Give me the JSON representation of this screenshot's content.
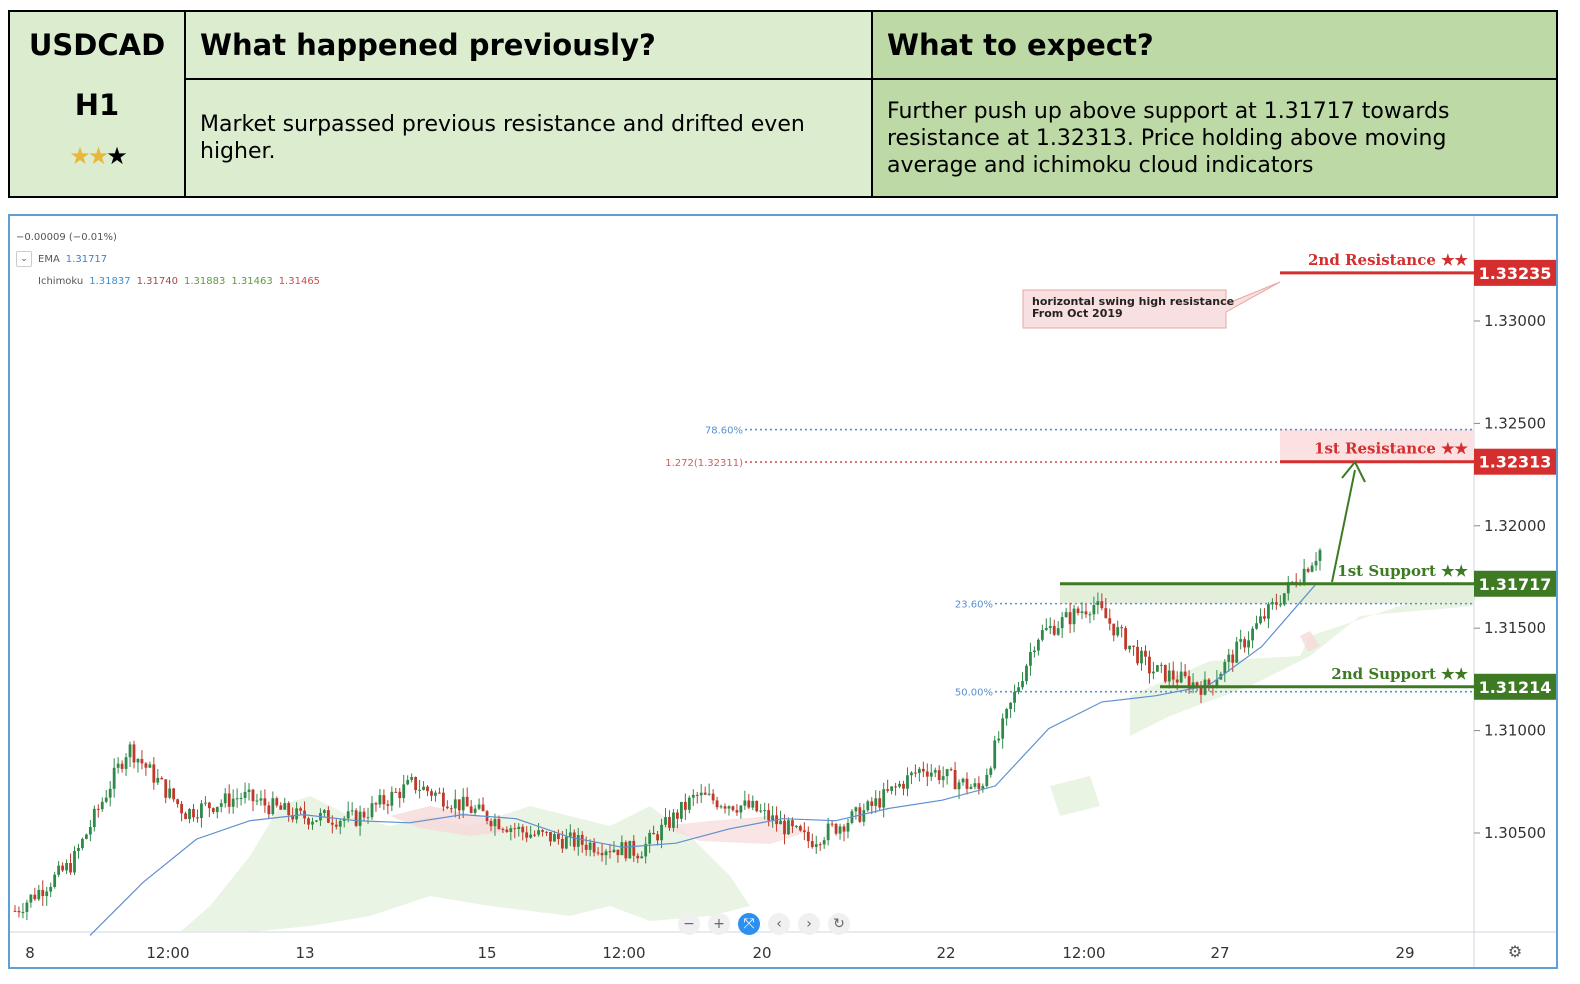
{
  "header": {
    "symbol": "USDCAD",
    "timeframe": "H1",
    "rating": {
      "filled": 2,
      "total": 3
    },
    "col2_title": "What happened previously?",
    "col2_body": "Market surpassed previous resistance and drifted even higher.",
    "col3_title": "What to expect?",
    "col3_body": "Further push up above support at 1.31717 towards resistance at 1.32313. Price holding above moving average and ichimoku cloud indicators"
  },
  "legend": {
    "change": "−0.00009 (−0.01%)",
    "ema_label": "EMA",
    "ema_value": "1.31717",
    "ichimoku_label": "Ichimoku",
    "ichimoku_values": [
      "1.31837",
      "1.31740",
      "1.31883",
      "1.31463",
      "1.31465"
    ]
  },
  "colors": {
    "resistance": "#d42e2e",
    "support": "#3e7a24",
    "ema": "#5f8fcf",
    "bull": "#2f8a4a",
    "bear": "#c0392b",
    "fib_blue": "#5b8fcf",
    "fib_red": "#d45c5c"
  },
  "chart_data": {
    "type": "line",
    "symbol": "USDCAD",
    "ylim": [
      1.3,
      1.3375
    ],
    "y_ticks": [
      "1.30500",
      "1.31000",
      "1.31500",
      "1.32000",
      "1.32500",
      "1.33000"
    ],
    "x_ticks": [
      "8",
      "12:00",
      "13",
      "15",
      "12:00",
      "20",
      "22",
      "12:00",
      "27",
      "29"
    ],
    "levels": [
      {
        "label": "2nd Resistance ★★",
        "value": "1.33235",
        "kind": "resistance"
      },
      {
        "label": "1st Resistance ★★",
        "value": "1.32313",
        "kind": "resistance"
      },
      {
        "label": "1st Support ★★",
        "value": "1.31717",
        "kind": "support"
      },
      {
        "label": "2nd Support ★★",
        "value": "1.31214",
        "kind": "support"
      }
    ],
    "fib_levels": [
      {
        "label": "78.60%",
        "value": 1.3247
      },
      {
        "label": "1.272(1.32311)",
        "value": 1.32311
      },
      {
        "label": "23.60%",
        "value": 1.3162
      },
      {
        "label": "50.00%",
        "value": 1.3119
      }
    ],
    "annotation": {
      "line1": "horizontal swing high resistance",
      "line2": "From Oct 2019"
    },
    "series": [
      {
        "name": "EMA",
        "values": [
          1.3,
          1.3026,
          1.3047,
          1.3056,
          1.3059,
          1.3056,
          1.3055,
          1.3059,
          1.3057,
          1.3048,
          1.3043,
          1.3045,
          1.3052,
          1.3057,
          1.3056,
          1.3062,
          1.3066,
          1.3073,
          1.3101,
          1.3114,
          1.3117,
          1.3122,
          1.3141,
          1.3171
        ]
      }
    ],
    "price_path": [
      1.3012,
      1.3035,
      1.3092,
      1.306,
      1.3068,
      1.3058,
      1.3057,
      1.3074,
      1.3062,
      1.305,
      1.3045,
      1.3041,
      1.3068,
      1.3062,
      1.3046,
      1.3061,
      1.3082,
      1.3071,
      1.3146,
      1.3162,
      1.313,
      1.3121,
      1.3155,
      1.3188
    ]
  }
}
